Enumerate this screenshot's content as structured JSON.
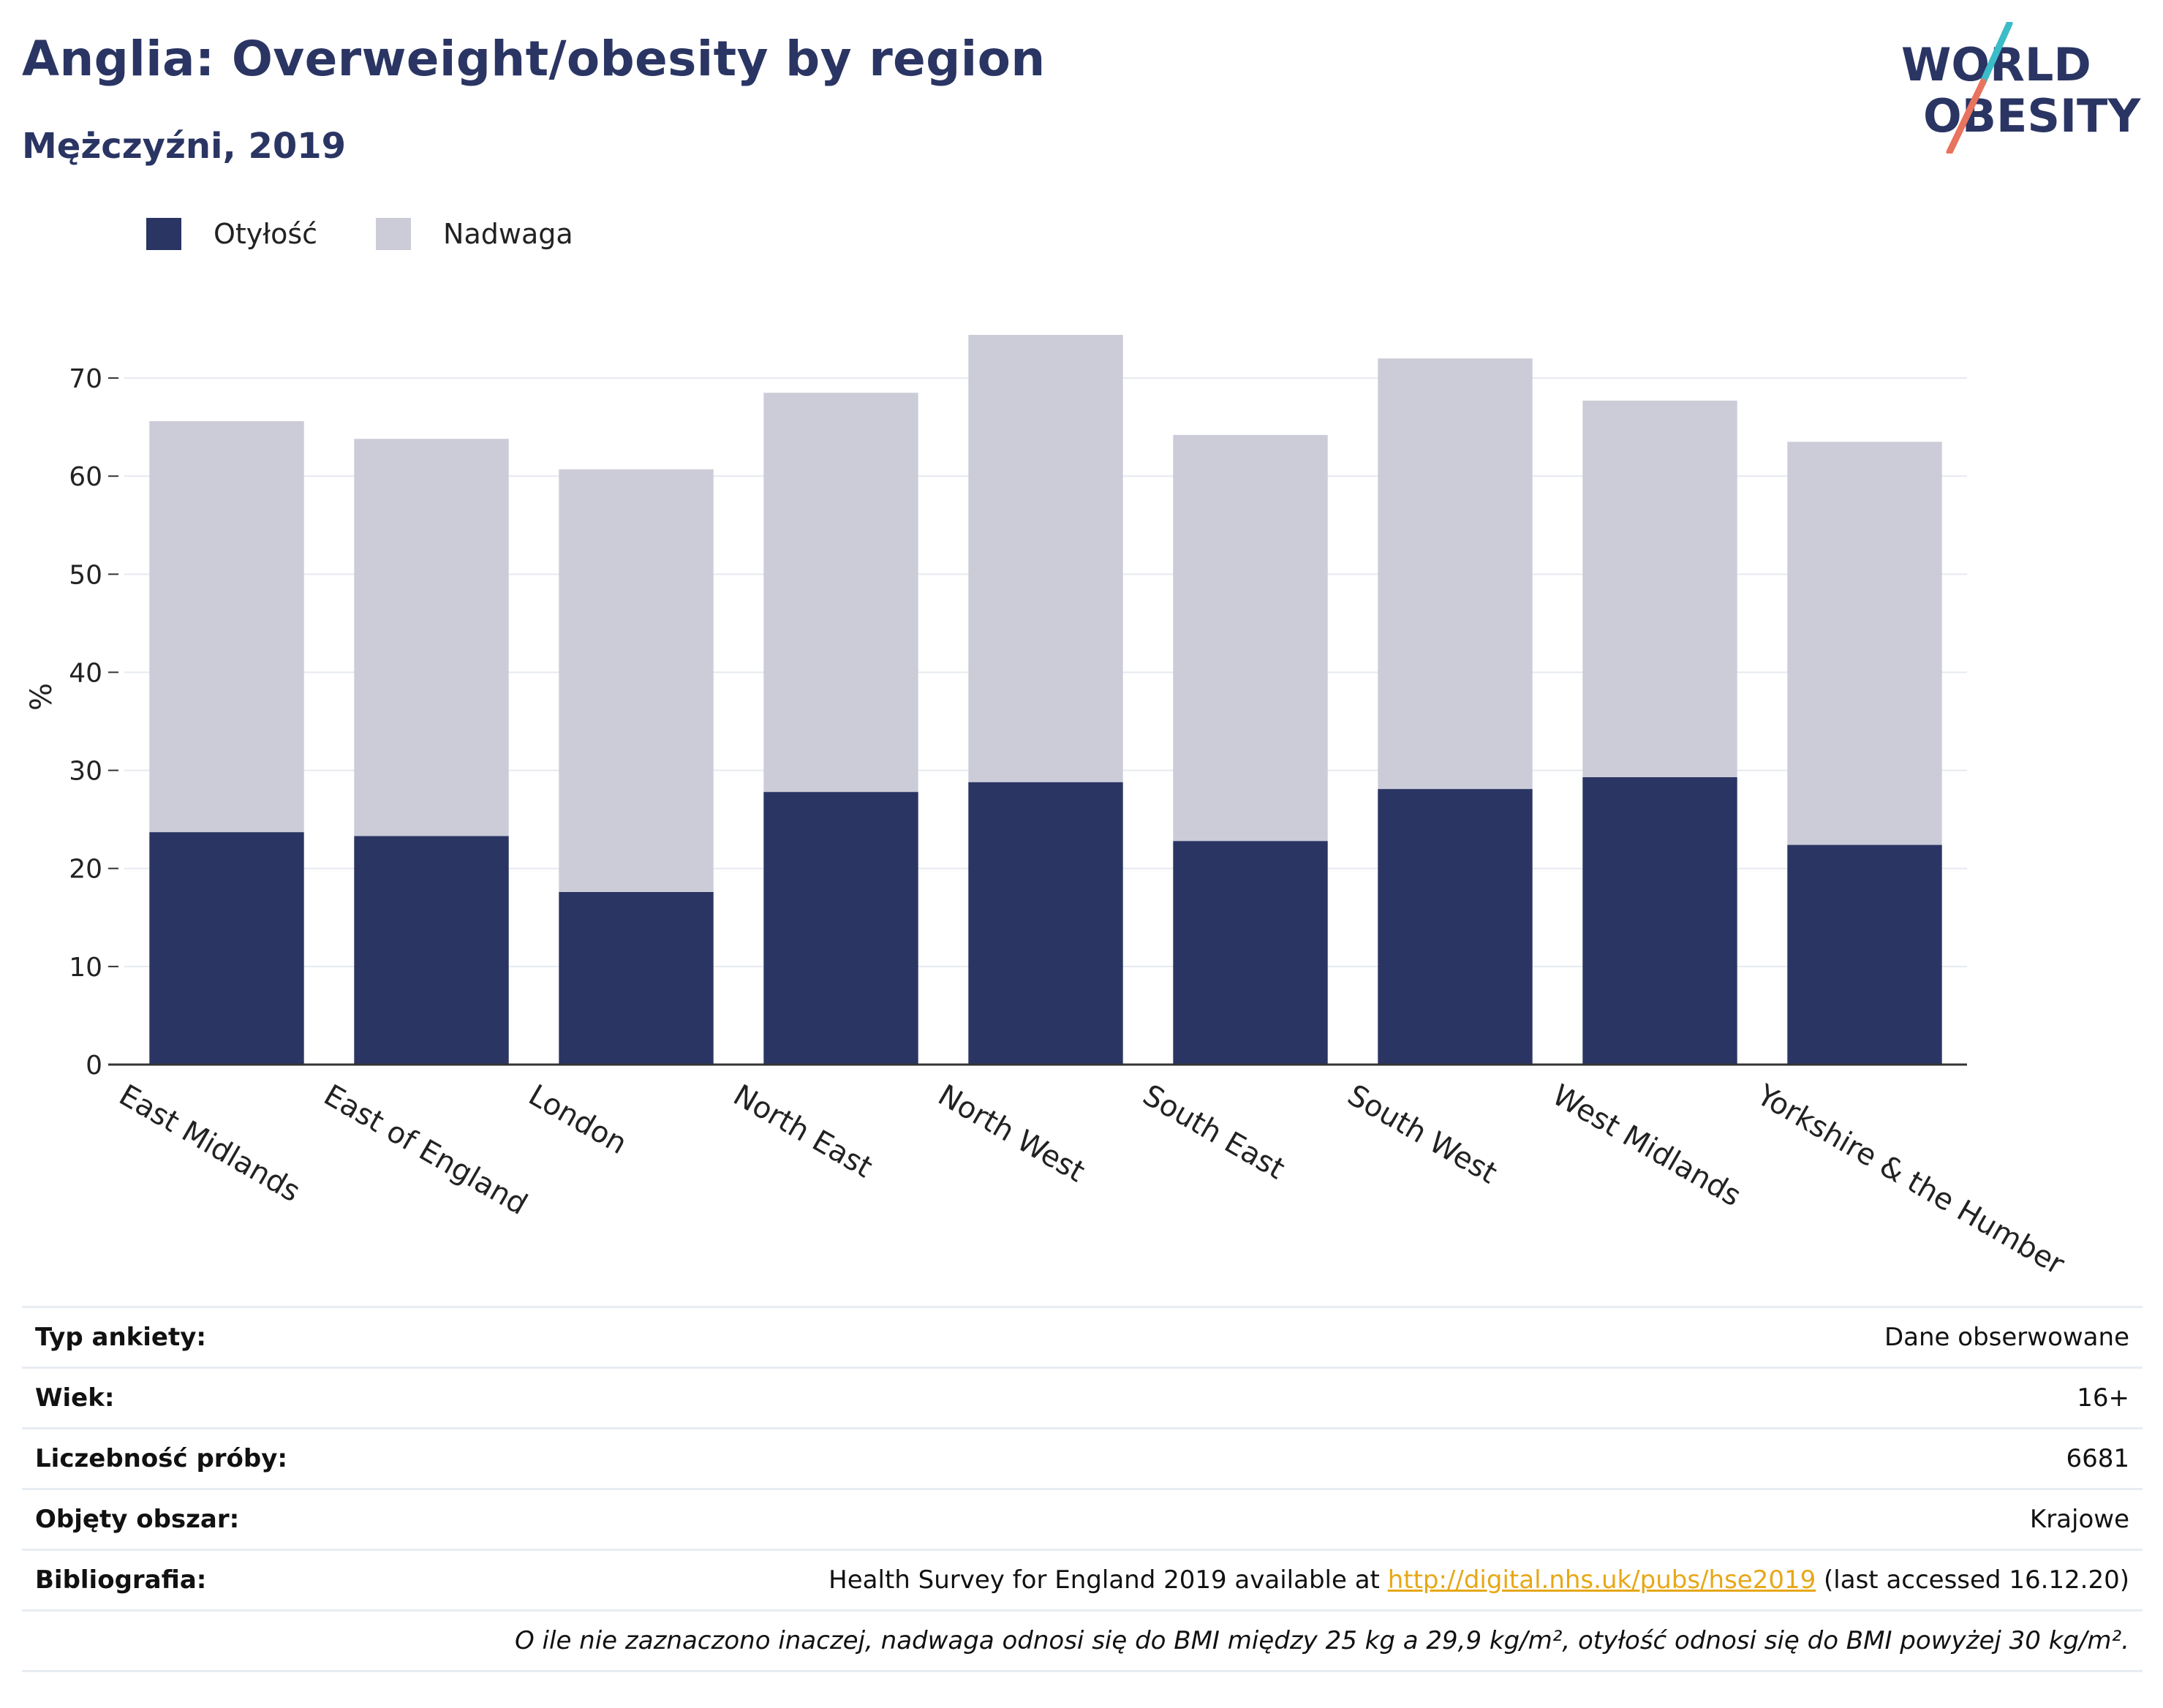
{
  "header": {
    "title": "Anglia: Overweight/obesity by region",
    "subtitle": "Mężczyźni, 2019"
  },
  "logo": {
    "line1": "WORLD",
    "line2": "OBESITY"
  },
  "colors": {
    "obesity": "#2a3563",
    "overweight": "#cbccd8",
    "accent_teal": "#3bbcc8",
    "accent_coral": "#e8735f",
    "link": "#e6a817"
  },
  "chart_data": {
    "type": "bar",
    "stacked": true,
    "categories": [
      "East Midlands",
      "East of England",
      "London",
      "North East",
      "North West",
      "South East",
      "South West",
      "West Midlands",
      "Yorkshire & the Humber"
    ],
    "series": [
      {
        "name": "Otyłość",
        "values": [
          23.7,
          23.3,
          17.6,
          27.8,
          28.8,
          22.8,
          28.1,
          29.3,
          22.4
        ]
      },
      {
        "name": "Nadwaga",
        "values": [
          41.9,
          40.5,
          43.1,
          40.7,
          45.6,
          41.4,
          43.9,
          38.4,
          41.1
        ]
      }
    ],
    "ylabel": "%",
    "xlabel": "",
    "ylim": [
      0,
      75
    ],
    "yticks": [
      0,
      10,
      20,
      30,
      40,
      50,
      60,
      70
    ],
    "grid": true,
    "legend_position": "top-left"
  },
  "meta": {
    "rows": [
      {
        "label": "Typ ankiety:",
        "value": "Dane obserwowane"
      },
      {
        "label": "Wiek:",
        "value": "16+"
      },
      {
        "label": "Liczebność próby:",
        "value": "6681"
      },
      {
        "label": "Objęty obszar:",
        "value": "Krajowe"
      }
    ],
    "bibliography": {
      "label": "Bibliografia:",
      "prefix": "Health Survey for England 2019 available at ",
      "link": "http://digital.nhs.uk/pubs/hse2019",
      "suffix": " (last accessed 16.12.20)"
    },
    "note": "O ile nie zaznaczono inaczej, nadwaga odnosi się do BMI między 25 kg a 29,9 kg/m², otyłość odnosi się do BMI powyżej 30 kg/m²."
  }
}
